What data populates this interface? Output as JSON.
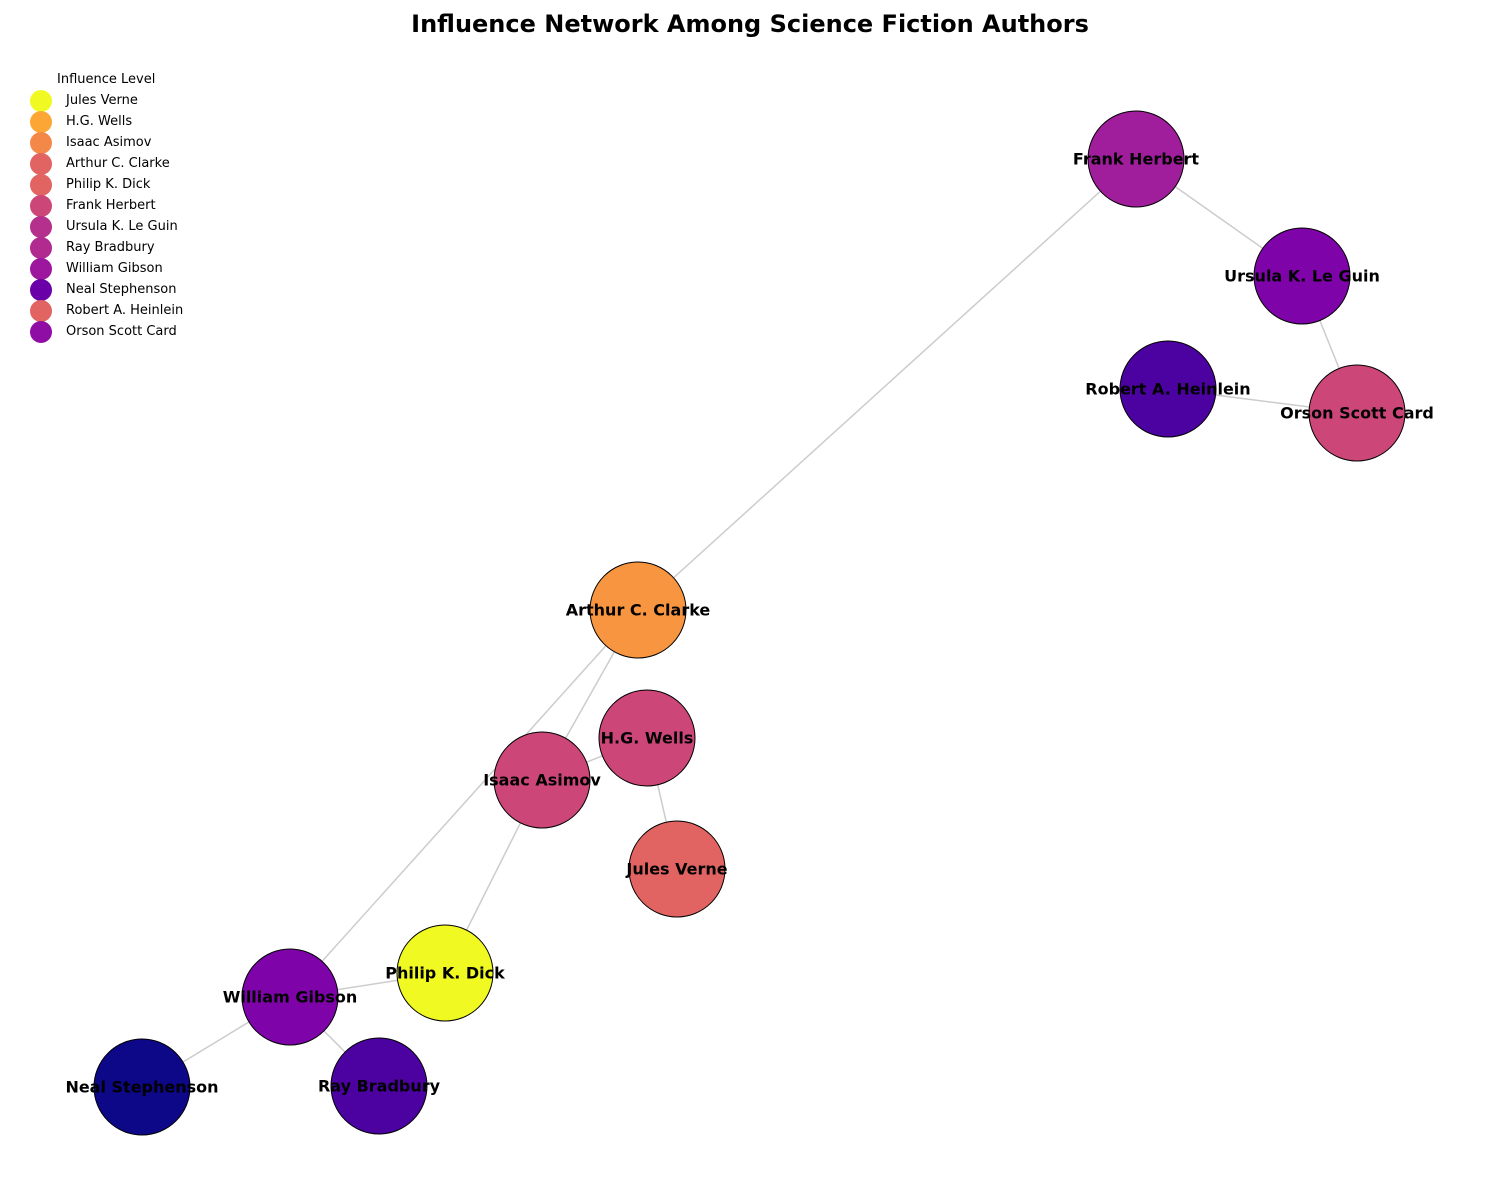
{
  "title": "Influence Network Among Science Fiction Authors",
  "legend": {
    "title": "Influence Level",
    "items": [
      {
        "label": "Jules Verne",
        "color": "#f0f921"
      },
      {
        "label": "H.G. Wells",
        "color": "#fca636"
      },
      {
        "label": "Isaac Asimov",
        "color": "#f48849"
      },
      {
        "label": "Arthur C. Clarke",
        "color": "#e16462"
      },
      {
        "label": "Philip K. Dick",
        "color": "#e16462"
      },
      {
        "label": "Frank Herbert",
        "color": "#cc4778"
      },
      {
        "label": "Ursula K. Le Guin",
        "color": "#b52f8c"
      },
      {
        "label": "Ray Bradbury",
        "color": "#b12a90"
      },
      {
        "label": "William Gibson",
        "color": "#9c179e"
      },
      {
        "label": "Neal Stephenson",
        "color": "#6a00a8"
      },
      {
        "label": "Robert A. Heinlein",
        "color": "#e16462"
      },
      {
        "label": "Orson Scott Card",
        "color": "#8f0da4"
      }
    ]
  },
  "nodes": [
    {
      "id": "frank",
      "label": "Frank Herbert",
      "color": "#a01e9b"
    },
    {
      "id": "ursula",
      "label": "Ursula K. Le Guin",
      "color": "#7e03a8"
    },
    {
      "id": "heinlein",
      "label": "Robert A. Heinlein",
      "color": "#4c02a1"
    },
    {
      "id": "card",
      "label": "Orson Scott Card",
      "color": "#cc4778"
    },
    {
      "id": "clarke",
      "label": "Arthur C. Clarke",
      "color": "#f89540"
    },
    {
      "id": "wells",
      "label": "H.G. Wells",
      "color": "#cc4778"
    },
    {
      "id": "asimov",
      "label": "Isaac Asimov",
      "color": "#cc4778"
    },
    {
      "id": "verne",
      "label": "Jules Verne",
      "color": "#e16462"
    },
    {
      "id": "dick",
      "label": "Philip K. Dick",
      "color": "#f0f921"
    },
    {
      "id": "gibson",
      "label": "William Gibson",
      "color": "#7e03a8"
    },
    {
      "id": "stephenson",
      "label": "Neal Stephenson",
      "color": "#0d0887"
    },
    {
      "id": "bradbury",
      "label": "Ray Bradbury",
      "color": "#4c02a1"
    }
  ],
  "edges": [
    [
      "frank",
      "ursula"
    ],
    [
      "frank",
      "clarke"
    ],
    [
      "ursula",
      "card"
    ],
    [
      "heinlein",
      "card"
    ],
    [
      "clarke",
      "asimov"
    ],
    [
      "clarke",
      "gibson"
    ],
    [
      "wells",
      "asimov"
    ],
    [
      "wells",
      "verne"
    ],
    [
      "asimov",
      "dick"
    ],
    [
      "dick",
      "gibson"
    ],
    [
      "gibson",
      "stephenson"
    ],
    [
      "gibson",
      "bradbury"
    ]
  ]
}
